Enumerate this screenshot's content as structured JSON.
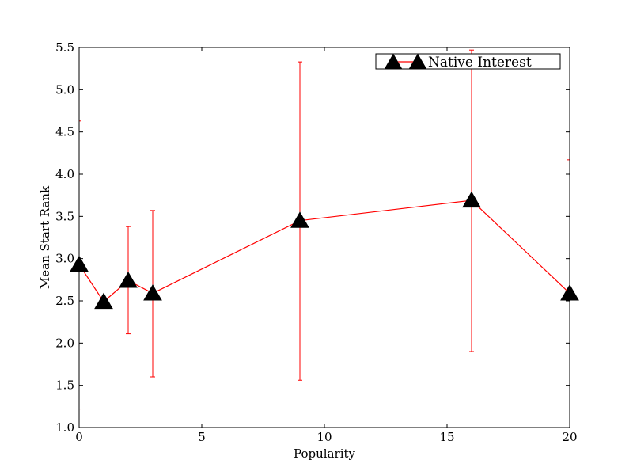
{
  "chart_data": {
    "type": "line",
    "title": "",
    "xlabel": "Popularity",
    "ylabel": "Mean Start Rank",
    "xlim": [
      0,
      20
    ],
    "ylim": [
      1.0,
      5.5
    ],
    "xticks": [
      0,
      5,
      10,
      15,
      20
    ],
    "xtick_labels": [
      "0",
      "5",
      "10",
      "15",
      "20"
    ],
    "yticks": [
      1.0,
      1.5,
      2.0,
      2.5,
      3.0,
      3.5,
      4.0,
      4.5,
      5.0,
      5.5
    ],
    "ytick_labels": [
      "1.0",
      "1.5",
      "2.0",
      "2.5",
      "3.0",
      "3.5",
      "4.0",
      "4.5",
      "5.0",
      "5.5"
    ],
    "grid": false,
    "legend_position": "top-right",
    "series": [
      {
        "name": "Native Interest",
        "line_color": "#ff0000",
        "marker": "triangle",
        "marker_color": "#000000",
        "x": [
          0,
          1,
          2,
          3,
          9,
          16,
          20
        ],
        "y": [
          2.93,
          2.49,
          2.74,
          2.59,
          3.45,
          3.69,
          2.59
        ],
        "err_low": [
          1.22,
          null,
          2.11,
          1.6,
          1.56,
          1.9,
          null
        ],
        "err_high": [
          4.63,
          null,
          3.38,
          3.57,
          5.33,
          5.47,
          4.17
        ]
      }
    ]
  }
}
